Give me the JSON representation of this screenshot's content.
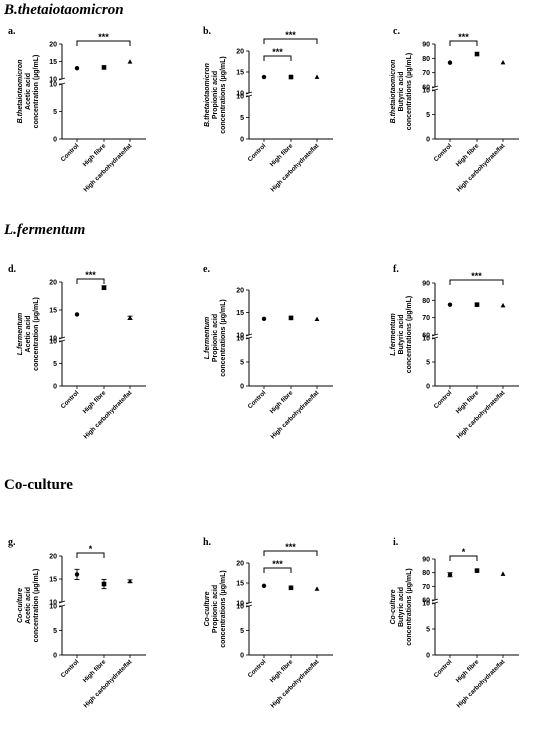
{
  "sections": [
    {
      "title": "B.thetaiotaomicron",
      "italic": true
    },
    {
      "title": "L.fermentum",
      "italic": true
    },
    {
      "title": "Co-culture",
      "italic": false
    }
  ],
  "chart_data": [
    {
      "id": "a",
      "type": "scatter",
      "panel_label": "a.",
      "ylabel": [
        "B.thetaiotaomicron",
        "Acetic acid",
        "concentration (µg/mL)"
      ],
      "categories": [
        "Control",
        "High fibre",
        "High carbohydrate/fat"
      ],
      "values": [
        13.1,
        13.3,
        14.9
      ],
      "errors": [
        0,
        0,
        0
      ],
      "markers": [
        "circle",
        "square",
        "triangle"
      ],
      "axis": {
        "lower": [
          0,
          10
        ],
        "lower_ticks": [
          0,
          5,
          10
        ],
        "upper": [
          10,
          20
        ],
        "upper_ticks": [
          10,
          15,
          20
        ]
      },
      "sig": [
        {
          "from": 0,
          "to": 2,
          "label": "***",
          "level": 0
        }
      ]
    },
    {
      "id": "b",
      "type": "scatter",
      "panel_label": "b.",
      "ylabel": [
        "B.thetaiotaomicron",
        "Propionic acid",
        "concentrations (µg/mL)"
      ],
      "categories": [
        "Control",
        "High fibre",
        "High carbohydrate/fat"
      ],
      "values": [
        13.8,
        13.8,
        13.8
      ],
      "errors": [
        0,
        0,
        0
      ],
      "markers": [
        "circle",
        "square",
        "triangle"
      ],
      "axis": {
        "lower": [
          0,
          10
        ],
        "lower_ticks": [
          0,
          5,
          10
        ],
        "upper": [
          10,
          20
        ],
        "upper_ticks": [
          10,
          15,
          20
        ]
      },
      "sig": [
        {
          "from": 0,
          "to": 1,
          "label": "***",
          "level": 0
        },
        {
          "from": 0,
          "to": 2,
          "label": "***",
          "level": 1
        }
      ]
    },
    {
      "id": "c",
      "type": "scatter",
      "panel_label": "c.",
      "ylabel": [
        "B.thetaiotaomicron",
        "Butyric acid",
        "concentrations (µg/mL)"
      ],
      "categories": [
        "Control",
        "High fibre",
        "High carbohydrate/fat"
      ],
      "values": [
        77,
        83,
        77
      ],
      "errors": [
        0,
        0,
        0
      ],
      "markers": [
        "circle",
        "square",
        "triangle"
      ],
      "axis": {
        "lower": [
          0,
          10
        ],
        "lower_ticks": [
          0,
          5,
          10
        ],
        "upper": [
          60,
          90
        ],
        "upper_ticks": [
          60,
          70,
          80,
          90
        ]
      },
      "sig": [
        {
          "from": 0,
          "to": 1,
          "label": "***",
          "level": 0
        }
      ]
    },
    {
      "id": "d",
      "type": "scatter",
      "panel_label": "d.",
      "ylabel": [
        "L.fermentum",
        "Acetic acid",
        "concentration (µg/mL)"
      ],
      "categories": [
        "Control",
        "High fibre",
        "High carbohydrate/fat"
      ],
      "values": [
        14.2,
        19.0,
        13.6
      ],
      "errors": [
        0,
        0.3,
        0.3
      ],
      "markers": [
        "circle",
        "square",
        "triangle"
      ],
      "axis": {
        "lower": [
          0,
          10
        ],
        "lower_ticks": [
          0,
          5,
          10
        ],
        "upper": [
          10,
          20
        ],
        "upper_ticks": [
          10,
          15,
          20
        ]
      },
      "sig": [
        {
          "from": 0,
          "to": 1,
          "label": "***",
          "level": 0
        }
      ]
    },
    {
      "id": "e",
      "type": "scatter",
      "panel_label": "e.",
      "ylabel": [
        "L.fermentum",
        "Propionic acid",
        "concentrations (µg/mL)"
      ],
      "categories": [
        "Control",
        "High fibre",
        "High carbohydrate/fat"
      ],
      "values": [
        13.6,
        13.8,
        13.5
      ],
      "errors": [
        0,
        0,
        0
      ],
      "markers": [
        "circle",
        "square",
        "triangle"
      ],
      "axis": {
        "lower": [
          0,
          10
        ],
        "lower_ticks": [
          0,
          5,
          10
        ],
        "upper": [
          10,
          20
        ],
        "upper_ticks": [
          10,
          15,
          20
        ]
      },
      "sig": []
    },
    {
      "id": "f",
      "type": "scatter",
      "panel_label": "f.",
      "ylabel": [
        "L.fermentum",
        "Butyric acid",
        "concentrations (µg/mL)"
      ],
      "categories": [
        "Control",
        "High fibre",
        "High carbohydrate/fat"
      ],
      "values": [
        77.5,
        77.5,
        77
      ],
      "errors": [
        0,
        0,
        0
      ],
      "markers": [
        "circle",
        "square",
        "triangle"
      ],
      "axis": {
        "lower": [
          0,
          10
        ],
        "lower_ticks": [
          0,
          5,
          10
        ],
        "upper": [
          60,
          90
        ],
        "upper_ticks": [
          60,
          70,
          80,
          90
        ]
      },
      "sig": [
        {
          "from": 0,
          "to": 2,
          "label": "***",
          "level": 0
        }
      ]
    },
    {
      "id": "g",
      "type": "scatter",
      "panel_label": "g.",
      "ylabel": [
        "Co-culture",
        "Acetic acid",
        "concentration (µg/mL)"
      ],
      "categories": [
        "Control",
        "High fibre",
        "High carbohydrate/fat"
      ],
      "values": [
        16.0,
        13.9,
        14.5
      ],
      "errors": [
        1.1,
        1.0,
        0.3
      ],
      "markers": [
        "circle",
        "square",
        "triangle"
      ],
      "axis": {
        "lower": [
          0,
          10
        ],
        "lower_ticks": [
          0,
          5,
          10
        ],
        "upper": [
          10,
          20
        ],
        "upper_ticks": [
          10,
          15,
          20
        ]
      },
      "sig": [
        {
          "from": 0,
          "to": 1,
          "label": "*",
          "level": 0
        }
      ]
    },
    {
      "id": "h",
      "type": "scatter",
      "panel_label": "h.",
      "ylabel": [
        "Co-culture",
        "Propionic acid",
        "concentrations (µg/mL)"
      ],
      "categories": [
        "Control",
        "High fibre",
        "High carbohydrate/fat"
      ],
      "values": [
        14.3,
        13.8,
        13.5
      ],
      "errors": [
        0,
        0,
        0
      ],
      "markers": [
        "circle",
        "square",
        "triangle"
      ],
      "axis": {
        "lower": [
          0,
          10
        ],
        "lower_ticks": [
          0,
          5,
          10
        ],
        "upper": [
          10,
          20
        ],
        "upper_ticks": [
          10,
          15,
          20
        ]
      },
      "sig": [
        {
          "from": 0,
          "to": 1,
          "label": "***",
          "level": 0
        },
        {
          "from": 0,
          "to": 2,
          "label": "***",
          "level": 1
        }
      ]
    },
    {
      "id": "i",
      "type": "scatter",
      "panel_label": "i.",
      "ylabel": [
        "Co-culture",
        "Butyric acid",
        "concentrations (µg/mL)"
      ],
      "categories": [
        "Control",
        "High fibre",
        "High carbohydrate/fat"
      ],
      "values": [
        78.5,
        81.5,
        79
      ],
      "errors": [
        1.5,
        0,
        0
      ],
      "markers": [
        "circle",
        "square",
        "triangle"
      ],
      "axis": {
        "lower": [
          0,
          10
        ],
        "lower_ticks": [
          0,
          5,
          10
        ],
        "upper": [
          60,
          90
        ],
        "upper_ticks": [
          60,
          70,
          80,
          90
        ]
      },
      "sig": [
        {
          "from": 0,
          "to": 1,
          "label": "*",
          "level": 0
        }
      ]
    }
  ]
}
